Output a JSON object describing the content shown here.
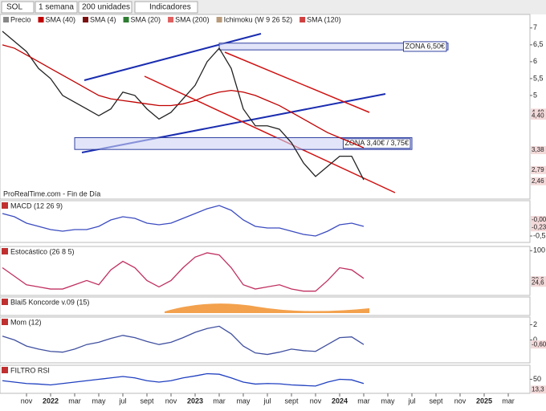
{
  "toolbar": {
    "symbol": "SOL",
    "period": "1 semana",
    "units": "200 unidades",
    "indicators": "Indicadores"
  },
  "legend": [
    {
      "name": "Precio",
      "color": "#888888"
    },
    {
      "name": "SMA (40)",
      "color": "#c00000"
    },
    {
      "name": "SMA (4)",
      "color": "#7a1010"
    },
    {
      "name": "SMA (20)",
      "color": "#2e7d32"
    },
    {
      "name": "SMA (200)",
      "color": "#e06060"
    },
    {
      "name": "Ichimoku (W 9 26 52)",
      "color": "#b89b7a"
    },
    {
      "name": "SMA (120)",
      "color": "#d04040"
    }
  ],
  "source": "ProRealTime.com - Fin de Día",
  "x_axis": {
    "xlim": [
      -2.2,
      41.8
    ],
    "xticks": [
      {
        "value": 0,
        "label": "nov"
      },
      {
        "value": 2,
        "label": "2022"
      },
      {
        "value": 4,
        "label": "mar"
      },
      {
        "value": 6,
        "label": "may"
      },
      {
        "value": 8,
        "label": "jul"
      },
      {
        "value": 10,
        "label": "sept"
      },
      {
        "value": 12,
        "label": "nov"
      },
      {
        "value": 14,
        "label": "2023"
      },
      {
        "value": 16,
        "label": "mar"
      },
      {
        "value": 18,
        "label": "may"
      },
      {
        "value": 20,
        "label": "jul"
      },
      {
        "value": 22,
        "label": "sept"
      },
      {
        "value": 24,
        "label": "nov"
      },
      {
        "value": 26,
        "label": "2024"
      },
      {
        "value": 28,
        "label": "mar"
      },
      {
        "value": 30,
        "label": "may"
      },
      {
        "value": 32,
        "label": "jul"
      },
      {
        "value": 34,
        "label": "sept"
      },
      {
        "value": 36,
        "label": "nov"
      },
      {
        "value": 38,
        "label": "2025"
      },
      {
        "value": 40,
        "label": "mar"
      }
    ],
    "x": [
      -2,
      -1,
      0,
      1,
      2,
      3,
      4,
      5,
      6,
      7,
      8,
      9,
      10,
      11,
      12,
      13,
      14,
      15,
      16,
      17,
      18,
      19,
      20,
      21,
      22,
      23,
      24,
      25,
      26,
      27,
      28
    ]
  },
  "chart_data": [
    {
      "type": "line",
      "ylim": [
        1.93,
        7.4
      ],
      "yticks": [
        7,
        {
          "value": 6.5,
          "label": "6,5"
        },
        6,
        {
          "value": 5.5,
          "label": "5,5"
        },
        5
      ],
      "series": [
        {
          "name": "Precio",
          "color": "#222222",
          "values": [
            6.9,
            6.6,
            6.3,
            5.8,
            5.5,
            5.0,
            4.8,
            4.6,
            4.4,
            4.6,
            5.1,
            5.0,
            4.6,
            4.3,
            4.5,
            4.9,
            5.3,
            6.0,
            6.4,
            5.8,
            4.6,
            4.1,
            4.1,
            4.0,
            3.6,
            3.0,
            2.6,
            2.9,
            3.2,
            3.2,
            2.5
          ]
        },
        {
          "name": "SMA (40)",
          "color": "#c00000",
          "values": [
            6.5,
            6.4,
            6.2,
            6.0,
            5.8,
            5.6,
            5.4,
            5.2,
            5.0,
            4.9,
            4.85,
            4.8,
            4.75,
            4.7,
            4.7,
            4.75,
            4.85,
            5.0,
            5.1,
            5.15,
            5.1,
            5.0,
            4.85,
            4.7,
            4.5,
            4.3,
            4.1,
            3.9,
            3.75,
            3.6,
            3.45
          ]
        }
      ],
      "zones": [
        {
          "label": "ZONA 6,50€",
          "range": [
            6.35,
            6.55
          ],
          "x": [
            16,
            35
          ]
        },
        {
          "label": "ZONA 3,40€ / 3,75€",
          "range": [
            3.4,
            3.75
          ],
          "x": [
            4,
            32
          ]
        }
      ],
      "price_labels": [
        {
          "value": 4.49,
          "label": "4,49"
        },
        {
          "value": 4.4,
          "label": "4,40"
        },
        {
          "value": 3.38,
          "label": "3,38"
        },
        {
          "value": 2.79,
          "label": "2,79"
        },
        {
          "value": 2.46,
          "label": "2,46"
        }
      ]
    },
    {
      "type": "line",
      "title": "MACD (12 26 9)",
      "ylim": [
        -0.7,
        0.6
      ],
      "yticks": [
        {
          "value": -0.5,
          "label": "-0,5"
        }
      ],
      "series": [
        {
          "name": "MACD",
          "color": "#3b4cc0",
          "values": [
            0.2,
            0.1,
            -0.1,
            -0.2,
            -0.3,
            -0.35,
            -0.3,
            -0.3,
            -0.2,
            0,
            0.1,
            0.05,
            -0.1,
            -0.15,
            -0.1,
            0.05,
            0.2,
            0.35,
            0.45,
            0.3,
            0,
            -0.2,
            -0.25,
            -0.25,
            -0.35,
            -0.45,
            -0.5,
            -0.35,
            -0.15,
            -0.1,
            -0.2
          ]
        }
      ],
      "price_labels": [
        {
          "value": 0,
          "label": "-0,00"
        },
        {
          "value": -0.23,
          "label": "-0,23"
        }
      ]
    },
    {
      "type": "line",
      "title": "Estocástico (26 8 5)",
      "ylim": [
        -5,
        110
      ],
      "yticks": [
        100
      ],
      "series": [
        {
          "name": "Estocástico",
          "color": "#c03060",
          "values": [
            60,
            40,
            20,
            15,
            10,
            10,
            20,
            30,
            20,
            55,
            75,
            60,
            30,
            15,
            30,
            60,
            85,
            95,
            90,
            60,
            20,
            10,
            15,
            20,
            10,
            5,
            5,
            30,
            60,
            55,
            35
          ]
        }
      ],
      "price_labels": [
        {
          "value": 30.6,
          "label": "30,6"
        },
        {
          "value": 24.6,
          "label": "24,6"
        }
      ]
    },
    {
      "type": "band",
      "title": "Blai5 Koncorde v.09 (15)"
    },
    {
      "type": "line",
      "title": "Mom (12)",
      "ylim": [
        -3,
        3
      ],
      "yticks": [
        2,
        0
      ],
      "series": [
        {
          "name": "Mom",
          "color": "#4050a0",
          "values": [
            0.5,
            0,
            -0.8,
            -1.2,
            -1.5,
            -1.6,
            -1.2,
            -0.6,
            -0.3,
            0.2,
            0.6,
            0.3,
            -0.2,
            -0.6,
            -0.3,
            0.3,
            1.0,
            1.5,
            1.8,
            0.8,
            -0.8,
            -1.7,
            -1.9,
            -1.6,
            -1.2,
            -1.4,
            -1.5,
            -0.6,
            0.3,
            0.4,
            -0.6
          ]
        }
      ],
      "price_labels": [
        {
          "value": -0.6,
          "label": "-0,60"
        }
      ]
    },
    {
      "type": "line",
      "title": "FILTRO RSI",
      "ylim": [
        0,
        100
      ],
      "yticks": [
        50
      ],
      "series": [
        {
          "name": "RSI",
          "color": "#2040c0",
          "values": [
            45,
            40,
            35,
            33,
            30,
            35,
            40,
            45,
            50,
            55,
            60,
            55,
            45,
            40,
            45,
            55,
            62,
            70,
            68,
            55,
            40,
            33,
            35,
            34,
            30,
            28,
            26,
            40,
            50,
            48,
            35
          ]
        }
      ],
      "price_labels": [
        {
          "value": 13.3,
          "label": "13,3"
        }
      ]
    }
  ]
}
